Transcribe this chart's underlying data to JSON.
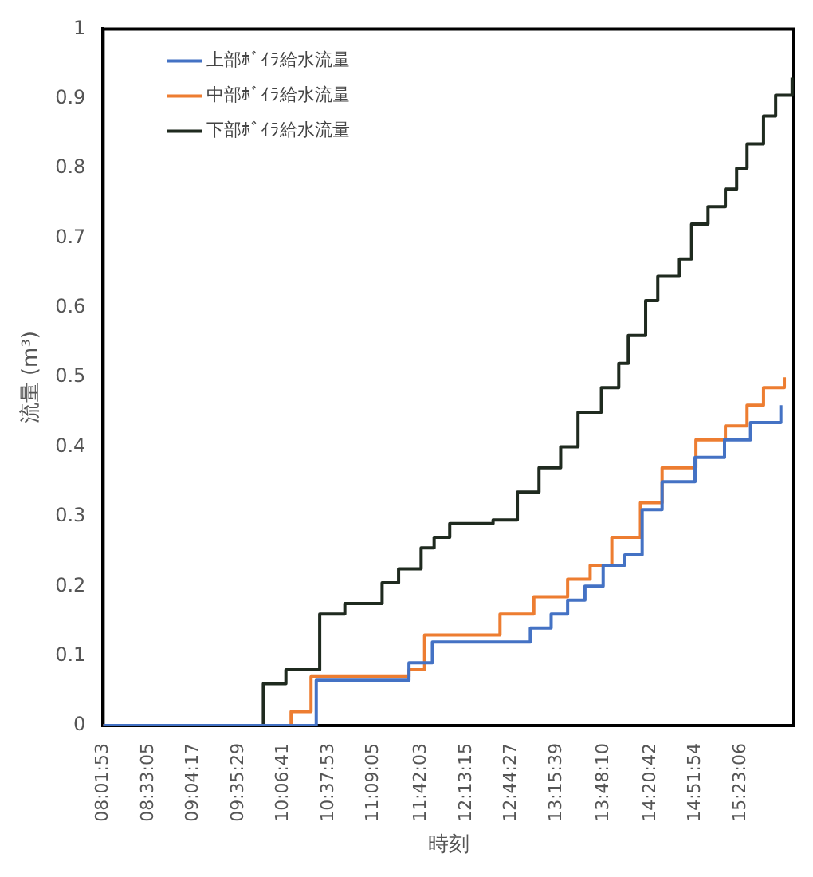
{
  "chart_data": {
    "type": "step",
    "xlabel": "時刻",
    "ylabel": "流量 (m³)",
    "xlim": [
      8.0314,
      16
    ],
    "xticks": [
      {
        "value": 8.0314,
        "label": "08:01:53"
      },
      {
        "value": 8.5514,
        "label": "08:33:05"
      },
      {
        "value": 9.0714,
        "label": "09:04:17"
      },
      {
        "value": 9.5914,
        "label": "09:35:29"
      },
      {
        "value": 10.1114,
        "label": "10:06:41"
      },
      {
        "value": 10.6314,
        "label": "10:37:53"
      },
      {
        "value": 11.1514,
        "label": "11:09:05"
      },
      {
        "value": 11.7008,
        "label": "11:42:03"
      },
      {
        "value": 12.2208,
        "label": "12:13:15"
      },
      {
        "value": 12.7408,
        "label": "12:44:27"
      },
      {
        "value": 13.2608,
        "label": "13:15:39"
      },
      {
        "value": 13.8028,
        "label": "13:48:10"
      },
      {
        "value": 14.345,
        "label": "14:20:42"
      },
      {
        "value": 14.865,
        "label": "14:51:54"
      },
      {
        "value": 15.385,
        "label": "15:23:06"
      }
    ],
    "ylim": [
      0,
      1
    ],
    "yticks": [
      0,
      0.1,
      0.2,
      0.3,
      0.4,
      0.5,
      0.6,
      0.7,
      0.8,
      0.9,
      1
    ],
    "grid": false,
    "legend": "top left",
    "series": [
      {
        "name": "上部ﾎﾞｲﾗ給水流量",
        "color": "#4472c4",
        "x": [
          8.0314,
          10.49,
          11.56,
          11.83,
          12.96,
          13.2,
          13.39,
          13.59,
          13.8,
          14.05,
          14.25,
          14.48,
          14.86,
          15.2,
          15.5,
          15.85
        ],
        "values": [
          0,
          0.065,
          0.09,
          0.12,
          0.14,
          0.16,
          0.18,
          0.2,
          0.23,
          0.245,
          0.31,
          0.35,
          0.385,
          0.41,
          0.435,
          0.46
        ]
      },
      {
        "name": "中部ﾎﾞｲﾗ給水流量",
        "color": "#ed7d31",
        "x": [
          8.0314,
          10.2,
          10.43,
          11.56,
          11.74,
          12.61,
          13.0,
          13.39,
          13.65,
          13.9,
          14.23,
          14.48,
          14.87,
          15.21,
          15.46,
          15.65,
          15.89
        ],
        "values": [
          0,
          0.02,
          0.07,
          0.08,
          0.13,
          0.16,
          0.185,
          0.21,
          0.23,
          0.27,
          0.32,
          0.37,
          0.41,
          0.43,
          0.46,
          0.485,
          0.5
        ]
      },
      {
        "name": "下部ﾎﾞｲﾗ給水流量",
        "color": "#1f2a1f",
        "x": [
          8.0314,
          9.88,
          10.14,
          10.53,
          10.82,
          11.25,
          11.44,
          11.7,
          11.85,
          12.03,
          12.53,
          12.81,
          13.06,
          13.31,
          13.51,
          13.78,
          13.98,
          14.09,
          14.29,
          14.43,
          14.68,
          14.82,
          15.01,
          15.21,
          15.34,
          15.46,
          15.65,
          15.79,
          15.98
        ],
        "values": [
          0,
          0.06,
          0.08,
          0.16,
          0.175,
          0.205,
          0.225,
          0.255,
          0.27,
          0.29,
          0.295,
          0.335,
          0.37,
          0.4,
          0.45,
          0.485,
          0.52,
          0.56,
          0.61,
          0.645,
          0.67,
          0.72,
          0.745,
          0.77,
          0.8,
          0.835,
          0.875,
          0.905,
          0.93
        ]
      }
    ]
  }
}
